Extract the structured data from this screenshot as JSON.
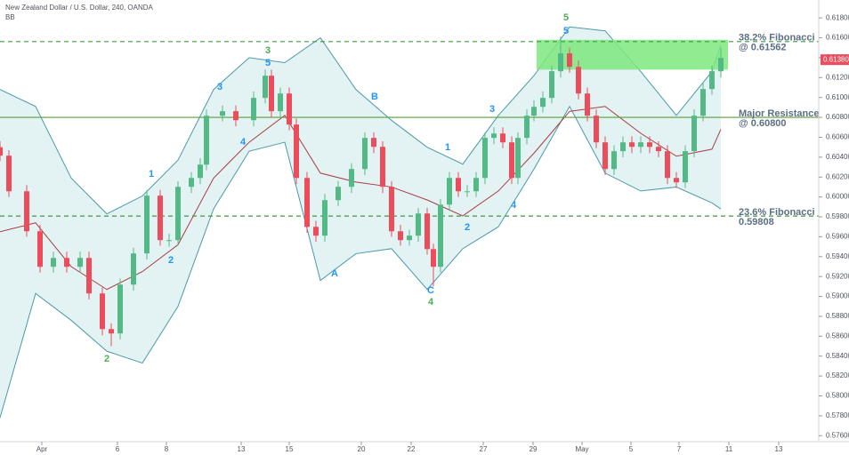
{
  "chart_data": {
    "type": "candlestick",
    "title": "New Zealand Dollar / U.S. Dollar, 240, OANDA",
    "indicator": "BB",
    "up_color": "#53b987",
    "down_color": "#eb4d5c",
    "x": [
      -0.5,
      0.5,
      2.5,
      4,
      5.5,
      7,
      8.5,
      9.5,
      11,
      12,
      13,
      14.5,
      16,
      17.5,
      18.5,
      19.5,
      21,
      22,
      22.7,
      24.5,
      26,
      28,
      29.3,
      30,
      31,
      32,
      32.8,
      34,
      35,
      36,
      37.5,
      39,
      40.5,
      41.5,
      42.5,
      43.5,
      44.5,
      45.5,
      46.5,
      47.5,
      48.2,
      49,
      50,
      51,
      52,
      53,
      54,
      55,
      56,
      57,
      57.7,
      58.7,
      59.5,
      60.5,
      61.5,
      62.5,
      63.5,
      64.5,
      65.5,
      66.5,
      67.5,
      68.5,
      69.5,
      70.5,
      71.5,
      72.5,
      73.5,
      74.5,
      75.5,
      76.5,
      77.5,
      78.5,
      79.5,
      80.5
    ],
    "open": [
      0.605,
      0.60415,
      0.60057,
      0.59655,
      0.59298,
      0.59387,
      0.59298,
      0.59387,
      0.5903,
      0.58672,
      0.58628,
      0.59119,
      0.59432,
      0.60013,
      0.59566,
      0.59566,
      0.60102,
      0.60191,
      0.60325,
      0.60817,
      0.60862,
      0.60772,
      0.60996,
      0.61219,
      0.60862,
      0.6104,
      0.60728,
      0.60191,
      0.597,
      0.59611,
      0.59968,
      0.60102,
      0.60281,
      0.60594,
      0.60504,
      0.60102,
      0.59655,
      0.59566,
      0.59611,
      0.59834,
      0.59476,
      0.59298,
      0.59923,
      0.60191,
      0.60057,
      0.60057,
      0.60191,
      0.60594,
      0.60638,
      0.60549,
      0.60191,
      0.60594,
      0.60817,
      0.60906,
      0.60996,
      0.61264,
      0.61443,
      0.61308,
      0.6104,
      0.60817,
      0.60549,
      0.60281,
      0.6046,
      0.60549,
      0.60504,
      0.60549,
      0.60504,
      0.6046,
      0.60191,
      0.60147,
      0.6046,
      0.60817,
      0.61085,
      0.61264
    ],
    "high": [
      0.6056,
      0.6047,
      0.6012,
      0.5972,
      0.5945,
      0.5945,
      0.5945,
      0.5945,
      0.5909,
      0.5873,
      0.5918,
      0.5949,
      0.6007,
      0.6007,
      0.5963,
      0.6016,
      0.6025,
      0.6039,
      0.6088,
      0.6092,
      0.6092,
      0.6106,
      0.6128,
      0.6128,
      0.611,
      0.611,
      0.6079,
      0.6025,
      0.5976,
      0.6003,
      0.6016,
      0.6034,
      0.6065,
      0.6065,
      0.6056,
      0.6016,
      0.5972,
      0.5967,
      0.5989,
      0.5989,
      0.5953,
      0.5998,
      0.6025,
      0.6025,
      0.6012,
      0.6025,
      0.6065,
      0.607,
      0.607,
      0.6061,
      0.6065,
      0.6088,
      0.6097,
      0.6106,
      0.6132,
      0.6161,
      0.615,
      0.6137,
      0.611,
      0.6088,
      0.6061,
      0.6052,
      0.6061,
      0.6061,
      0.6061,
      0.6061,
      0.6056,
      0.6052,
      0.6025,
      0.6052,
      0.6088,
      0.6115,
      0.6132,
      0.615
    ],
    "low": [
      0.6036,
      0.6,
      0.596,
      0.5924,
      0.5924,
      0.5924,
      0.5924,
      0.5897,
      0.5861,
      0.585,
      0.5857,
      0.5906,
      0.5937,
      0.5951,
      0.595,
      0.5951,
      0.6004,
      0.6013,
      0.6027,
      0.6076,
      0.6071,
      0.6071,
      0.6094,
      0.608,
      0.608,
      0.6067,
      0.6013,
      0.5964,
      0.5955,
      0.5955,
      0.5991,
      0.6004,
      0.6022,
      0.6044,
      0.6004,
      0.596,
      0.5951,
      0.5951,
      0.5955,
      0.5942,
      0.591,
      0.5924,
      0.5986,
      0.6,
      0.6,
      0.6,
      0.6013,
      0.6053,
      0.6049,
      0.6013,
      0.6013,
      0.6053,
      0.6076,
      0.6085,
      0.6094,
      0.612,
      0.6125,
      0.6098,
      0.6076,
      0.6049,
      0.6022,
      0.6022,
      0.604,
      0.6044,
      0.6044,
      0.6044,
      0.604,
      0.6013,
      0.6009,
      0.6009,
      0.604,
      0.6076,
      0.6103,
      0.612
    ],
    "close": [
      0.60415,
      0.60057,
      0.59655,
      0.59298,
      0.59387,
      0.59298,
      0.59387,
      0.5903,
      0.58672,
      0.58628,
      0.59119,
      0.59432,
      0.60013,
      0.59566,
      0.59566,
      0.60102,
      0.60191,
      0.60325,
      0.60817,
      0.60862,
      0.60772,
      0.60996,
      0.61219,
      0.60862,
      0.6104,
      0.60728,
      0.60191,
      0.597,
      0.59611,
      0.59968,
      0.60102,
      0.60281,
      0.60594,
      0.60504,
      0.60102,
      0.59655,
      0.59566,
      0.59611,
      0.59834,
      0.59476,
      0.59298,
      0.59923,
      0.60191,
      0.60057,
      0.60057,
      0.60191,
      0.60594,
      0.60638,
      0.60549,
      0.60191,
      0.60594,
      0.60817,
      0.60906,
      0.60996,
      0.61264,
      0.61443,
      0.61308,
      0.6104,
      0.60817,
      0.60549,
      0.60281,
      0.6046,
      0.60549,
      0.60504,
      0.60549,
      0.60504,
      0.6046,
      0.60191,
      0.60147,
      0.6046,
      0.60817,
      0.61085,
      0.61264,
      0.61398
    ],
    "bands": {
      "x": [
        -0.5,
        3.5,
        7.5,
        11.5,
        15.5,
        19.5,
        23.5,
        27.5,
        31.5,
        35.5,
        39.5,
        43.5,
        47.5,
        51.5,
        55.5,
        59.5,
        63.5,
        67.5,
        71.5,
        75.5,
        79.5,
        80.5
      ],
      "upper": [
        0.6108,
        0.6091,
        0.6019,
        0.5983,
        0.6001,
        0.6037,
        0.6108,
        0.614,
        0.6135,
        0.616,
        0.6108,
        0.6077,
        0.605,
        0.6033,
        0.6082,
        0.6122,
        0.6171,
        0.6167,
        0.6126,
        0.6082,
        0.6126,
        0.6153
      ],
      "middle": [
        0.5965,
        0.5974,
        0.593,
        0.5907,
        0.5925,
        0.5952,
        0.6019,
        0.6055,
        0.6082,
        0.6024,
        0.6015,
        0.601,
        0.5997,
        0.5981,
        0.6006,
        0.6044,
        0.6086,
        0.6091,
        0.6064,
        0.6041,
        0.6048,
        0.6068
      ],
      "lower": [
        0.5778,
        0.5903,
        0.5876,
        0.5845,
        0.5833,
        0.589,
        0.5988,
        0.6046,
        0.6055,
        0.5916,
        0.5943,
        0.5948,
        0.5907,
        0.5948,
        0.597,
        0.6028,
        0.6091,
        0.6024,
        0.6006,
        0.601,
        0.5994,
        0.5988
      ],
      "line_color": "#4a9aab",
      "fill_color": "#e3f2f3",
      "middle_color": "#a83e43"
    },
    "levels": [
      {
        "value": 0.61562,
        "style": "dashed",
        "color": "#3f9a3f",
        "label": [
          "38.2% Fibonacci",
          "@ 0.61562"
        ]
      },
      {
        "value": 0.608,
        "style": "solid",
        "color": "#5a9e3a",
        "label": [
          "Major Resistance",
          "@ 0.60800"
        ]
      },
      {
        "value": 0.59808,
        "style": "dashed",
        "color": "#3f9a3f",
        "label": [
          "23.6% Fibonacci",
          "0.59808"
        ]
      }
    ],
    "zone": {
      "x": [
        59.8,
        81.3
      ],
      "y": [
        0.6128,
        0.6158
      ],
      "color": "#7ee87e"
    },
    "last_price": {
      "value": 0.6138,
      "label": "0.61380"
    },
    "waves": [
      {
        "text": "5",
        "color": "#4caf50"
      },
      {
        "text": "5",
        "color": "#2196f3"
      },
      {
        "text": "3",
        "color": "#4caf50"
      },
      {
        "text": "5",
        "color": "#2196f3"
      },
      {
        "text": "3",
        "color": "#2196f3"
      },
      {
        "text": "4",
        "color": "#2196f3"
      },
      {
        "text": "1",
        "color": "#2196f3"
      },
      {
        "text": "2",
        "color": "#2196f3"
      },
      {
        "text": "2",
        "color": "#4caf50"
      },
      {
        "text": "B",
        "color": "#2196f3"
      },
      {
        "text": "A",
        "color": "#2196f3"
      },
      {
        "text": "C",
        "color": "#2196f3"
      },
      {
        "text": "4",
        "color": "#4caf50"
      },
      {
        "text": "1",
        "color": "#2196f3"
      },
      {
        "text": "2",
        "color": "#2196f3"
      },
      {
        "text": "3",
        "color": "#2196f3"
      },
      {
        "text": "4",
        "color": "#2196f3"
      }
    ],
    "xlim": [
      -0.5,
      91.5
    ],
    "ylim": [
      0.5754,
      0.6198
    ],
    "xticks": [
      {
        "value": 4.2,
        "label": "Apr"
      },
      {
        "value": 12.7,
        "label": "6"
      },
      {
        "value": 18.2,
        "label": "8"
      },
      {
        "value": 26.6,
        "label": "13"
      },
      {
        "value": 32,
        "label": "15"
      },
      {
        "value": 40.1,
        "label": "20"
      },
      {
        "value": 45.7,
        "label": "22"
      },
      {
        "value": 53.8,
        "label": "27"
      },
      {
        "value": 59.4,
        "label": "29"
      },
      {
        "value": 64.9,
        "label": "May"
      },
      {
        "value": 70.4,
        "label": "5"
      },
      {
        "value": 75.8,
        "label": "7"
      },
      {
        "value": 81.4,
        "label": "11"
      },
      {
        "value": 87,
        "label": "13"
      }
    ],
    "yticks": [
      {
        "value": 0.576,
        "label": "0.57600"
      },
      {
        "value": 0.578,
        "label": "0.57800"
      },
      {
        "value": 0.58,
        "label": "0.58000"
      },
      {
        "value": 0.582,
        "label": "0.58200"
      },
      {
        "value": 0.584,
        "label": "0.58400"
      },
      {
        "value": 0.586,
        "label": "0.58600"
      },
      {
        "value": 0.588,
        "label": "0.58800"
      },
      {
        "value": 0.59,
        "label": "0.59000"
      },
      {
        "value": 0.592,
        "label": "0.59200"
      },
      {
        "value": 0.594,
        "label": "0.59400"
      },
      {
        "value": 0.596,
        "label": "0.59600"
      },
      {
        "value": 0.598,
        "label": "0.59800"
      },
      {
        "value": 0.6,
        "label": "0.60000"
      },
      {
        "value": 0.602,
        "label": "0.60200"
      },
      {
        "value": 0.604,
        "label": "0.60400"
      },
      {
        "value": 0.606,
        "label": "0.60600"
      },
      {
        "value": 0.608,
        "label": "0.60800"
      },
      {
        "value": 0.61,
        "label": "0.61000"
      },
      {
        "value": 0.612,
        "label": "0.61200"
      },
      {
        "value": 0.614,
        "label": "0.61400"
      },
      {
        "value": 0.616,
        "label": "0.61600"
      },
      {
        "value": 0.618,
        "label": "0.61800"
      }
    ]
  }
}
